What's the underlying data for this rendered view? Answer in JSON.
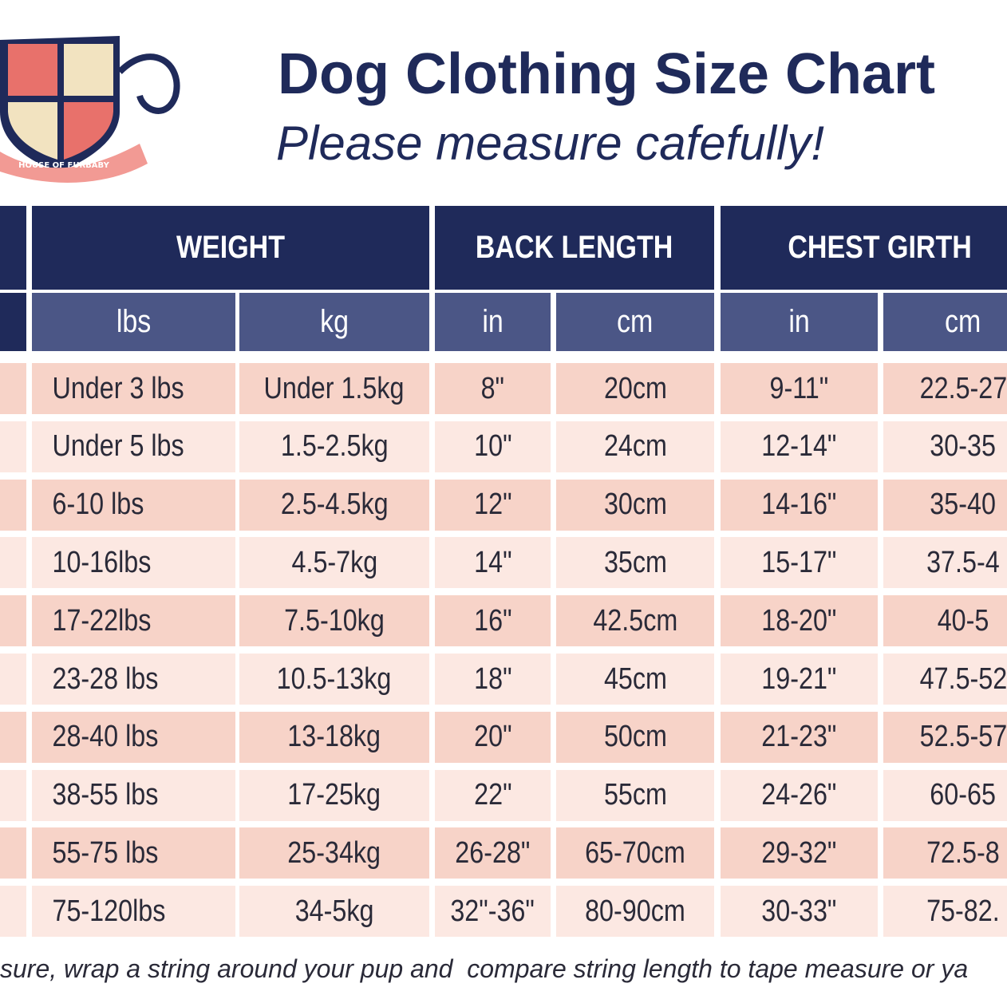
{
  "header": {
    "title": "Dog Clothing Size Chart",
    "subtitle": "Please measure cafefully!",
    "logo_text": "HOUSE OF FURBABY"
  },
  "table": {
    "groups": [
      "WEIGHT",
      "BACK LENGTH",
      "CHEST GIRTH"
    ],
    "units": [
      "lbs",
      "kg",
      "in",
      "cm",
      "in",
      "cm"
    ],
    "rows": [
      [
        "Under 3 lbs",
        "Under 1.5kg",
        "8\"",
        "20cm",
        "9-11\"",
        "22.5-27"
      ],
      [
        "Under 5 lbs",
        "1.5-2.5kg",
        "10\"",
        "24cm",
        "12-14\"",
        "30-35"
      ],
      [
        "6-10 lbs",
        "2.5-4.5kg",
        "12\"",
        "30cm",
        "14-16\"",
        "35-40"
      ],
      [
        "10-16lbs",
        "4.5-7kg",
        "14\"",
        "35cm",
        "15-17\"",
        "37.5-4"
      ],
      [
        "17-22lbs",
        "7.5-10kg",
        "16\"",
        "42.5cm",
        "18-20\"",
        "40-5"
      ],
      [
        "23-28 lbs",
        "10.5-13kg",
        "18\"",
        "45cm",
        "19-21\"",
        "47.5-52"
      ],
      [
        "28-40 lbs",
        "13-18kg",
        "20\"",
        "50cm",
        "21-23\"",
        "52.5-57"
      ],
      [
        "38-55 lbs",
        "17-25kg",
        "22\"",
        "55cm",
        "24-26\"",
        "60-65"
      ],
      [
        "55-75 lbs",
        "25-34kg",
        "26-28\"",
        "65-70cm",
        "29-32\"",
        "72.5-8"
      ],
      [
        "75-120lbs",
        "34-5kg",
        "32\"-36\"",
        "80-90cm",
        "30-33\"",
        "75-82."
      ]
    ]
  },
  "footer": "sure, wrap a string around your pup and  compare string length to tape measure or ya"
}
